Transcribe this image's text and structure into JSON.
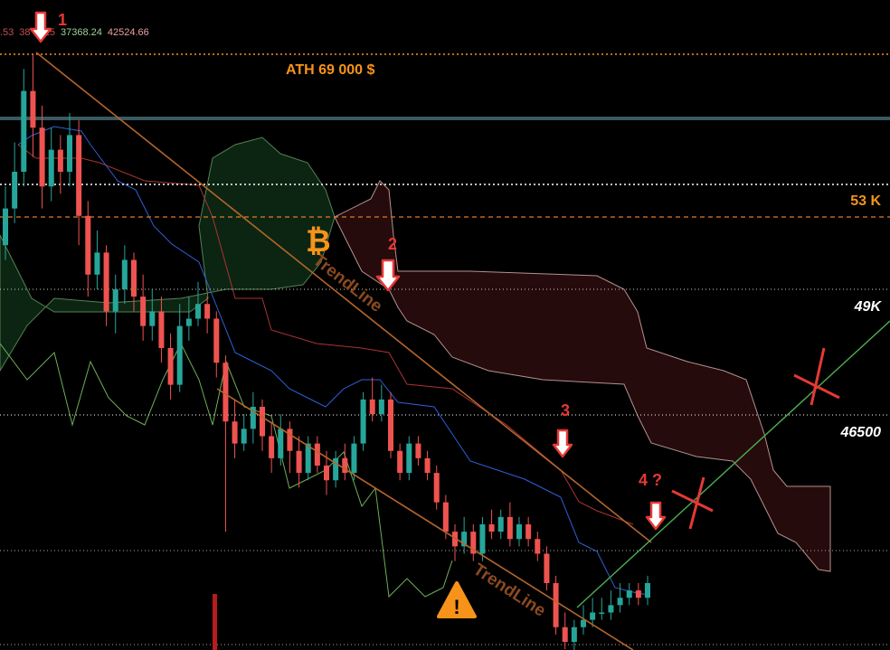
{
  "header": {
    "ohlc_values": [
      ".53",
      "38",
      "2.15",
      "37368.24",
      "42524.66"
    ]
  },
  "levels": {
    "ath_label": "ATH 69 000 $",
    "k53_label": "53 K",
    "k49_label": "49K",
    "p46500_label": "46500"
  },
  "annotations": {
    "marker_1": "1",
    "marker_2": "2",
    "marker_3": "3",
    "marker_4": "4 ?",
    "trendline_upper": "TrendLine",
    "trendline_lower": "TrendLine",
    "bitcoin_symbol": "₿",
    "warning_symbol": "!"
  },
  "colors": {
    "background": "#000000",
    "bull": "#26a69a",
    "bear": "#ef5350",
    "accent_orange": "#f7931a",
    "annotation_red": "#e53935",
    "level_text": "#ffffff",
    "trendline": "#b5652b",
    "support_green": "#4caf50",
    "kumo_red": "#3b1212",
    "kumo_green": "#0d2a14"
  },
  "chart_data": {
    "type": "candlestick",
    "title": "",
    "xlabel": "",
    "ylabel": "",
    "horizontal_levels": [
      {
        "name": "ATH",
        "value": 69000
      },
      {
        "name": "53K",
        "value": 53000
      },
      {
        "name": "49K",
        "value": 49000
      },
      {
        "name": "46500",
        "value": 46500
      }
    ],
    "price_range_approx": [
      33000,
      69000
    ],
    "candles": [
      {
        "o": 56.0,
        "c": 58.5,
        "h": 60.0,
        "l": 55.0
      },
      {
        "o": 58.5,
        "c": 61.0,
        "h": 63.0,
        "l": 57.5
      },
      {
        "o": 61.0,
        "c": 66.5,
        "h": 68.0,
        "l": 60.0
      },
      {
        "o": 66.5,
        "c": 64.0,
        "h": 69.0,
        "l": 62.0
      },
      {
        "o": 64.0,
        "c": 60.0,
        "h": 65.5,
        "l": 58.5
      },
      {
        "o": 60.0,
        "c": 62.5,
        "h": 64.0,
        "l": 59.0
      },
      {
        "o": 62.5,
        "c": 61.0,
        "h": 63.5,
        "l": 59.5
      },
      {
        "o": 61.0,
        "c": 63.5,
        "h": 65.0,
        "l": 60.0
      },
      {
        "o": 63.5,
        "c": 58.0,
        "h": 64.5,
        "l": 56.0
      },
      {
        "o": 58.0,
        "c": 54.0,
        "h": 59.0,
        "l": 52.5
      },
      {
        "o": 54.0,
        "c": 55.5,
        "h": 57.0,
        "l": 53.0
      },
      {
        "o": 55.5,
        "c": 51.5,
        "h": 56.0,
        "l": 50.5
      },
      {
        "o": 51.5,
        "c": 53.0,
        "h": 54.0,
        "l": 50.0
      },
      {
        "o": 53.0,
        "c": 55.0,
        "h": 56.0,
        "l": 52.0
      },
      {
        "o": 55.0,
        "c": 52.5,
        "h": 55.5,
        "l": 51.5
      },
      {
        "o": 52.5,
        "c": 50.5,
        "h": 54.0,
        "l": 49.5
      },
      {
        "o": 50.5,
        "c": 51.5,
        "h": 53.0,
        "l": 49.5
      },
      {
        "o": 51.5,
        "c": 49.0,
        "h": 52.5,
        "l": 48.0
      },
      {
        "o": 49.0,
        "c": 46.5,
        "h": 50.0,
        "l": 45.5
      },
      {
        "o": 46.5,
        "c": 50.5,
        "h": 52.0,
        "l": 46.0
      },
      {
        "o": 50.5,
        "c": 51.0,
        "h": 52.5,
        "l": 49.5
      },
      {
        "o": 51.0,
        "c": 52.0,
        "h": 53.5,
        "l": 50.5
      },
      {
        "o": 52.0,
        "c": 51.0,
        "h": 52.5,
        "l": 50.0
      },
      {
        "o": 51.0,
        "c": 48.0,
        "h": 51.5,
        "l": 47.0
      },
      {
        "o": 48.0,
        "c": 44.0,
        "h": 48.5,
        "l": 36.5
      },
      {
        "o": 44.0,
        "c": 42.5,
        "h": 45.5,
        "l": 41.5
      },
      {
        "o": 42.5,
        "c": 43.5,
        "h": 44.5,
        "l": 42.0
      },
      {
        "o": 43.5,
        "c": 45.0,
        "h": 46.0,
        "l": 42.5
      },
      {
        "o": 45.0,
        "c": 43.0,
        "h": 45.5,
        "l": 42.0
      },
      {
        "o": 43.0,
        "c": 41.5,
        "h": 44.0,
        "l": 40.5
      },
      {
        "o": 41.5,
        "c": 43.5,
        "h": 44.5,
        "l": 41.0
      },
      {
        "o": 43.5,
        "c": 42.0,
        "h": 44.0,
        "l": 40.5
      },
      {
        "o": 42.0,
        "c": 40.5,
        "h": 43.0,
        "l": 39.5
      },
      {
        "o": 40.5,
        "c": 42.5,
        "h": 43.0,
        "l": 40.0
      },
      {
        "o": 42.5,
        "c": 41.0,
        "h": 43.0,
        "l": 40.5
      },
      {
        "o": 41.0,
        "c": 40.0,
        "h": 42.0,
        "l": 39.0
      },
      {
        "o": 40.0,
        "c": 41.5,
        "h": 42.0,
        "l": 39.5
      },
      {
        "o": 41.5,
        "c": 40.5,
        "h": 42.5,
        "l": 40.0
      },
      {
        "o": 40.5,
        "c": 42.5,
        "h": 43.0,
        "l": 40.0
      },
      {
        "o": 42.5,
        "c": 45.5,
        "h": 46.0,
        "l": 42.0
      },
      {
        "o": 45.5,
        "c": 44.5,
        "h": 47.0,
        "l": 44.0
      },
      {
        "o": 44.5,
        "c": 45.5,
        "h": 46.5,
        "l": 44.0
      },
      {
        "o": 45.5,
        "c": 42.0,
        "h": 46.0,
        "l": 41.5
      },
      {
        "o": 42.0,
        "c": 40.5,
        "h": 42.5,
        "l": 40.0
      },
      {
        "o": 40.5,
        "c": 42.5,
        "h": 43.0,
        "l": 40.0
      },
      {
        "o": 42.5,
        "c": 41.5,
        "h": 43.0,
        "l": 41.0
      },
      {
        "o": 41.5,
        "c": 40.5,
        "h": 42.0,
        "l": 40.0
      },
      {
        "o": 40.5,
        "c": 38.5,
        "h": 41.0,
        "l": 38.0
      },
      {
        "o": 38.5,
        "c": 36.5,
        "h": 39.0,
        "l": 36.0
      },
      {
        "o": 36.5,
        "c": 35.5,
        "h": 37.0,
        "l": 34.5
      },
      {
        "o": 35.5,
        "c": 36.5,
        "h": 37.5,
        "l": 35.0
      },
      {
        "o": 36.5,
        "c": 35.0,
        "h": 37.0,
        "l": 34.5
      },
      {
        "o": 35.0,
        "c": 37.0,
        "h": 37.5,
        "l": 34.5
      },
      {
        "o": 37.0,
        "c": 36.5,
        "h": 38.0,
        "l": 36.0
      },
      {
        "o": 36.5,
        "c": 37.5,
        "h": 38.0,
        "l": 36.0
      },
      {
        "o": 37.5,
        "c": 36.0,
        "h": 38.5,
        "l": 35.5
      },
      {
        "o": 36.0,
        "c": 37.0,
        "h": 37.5,
        "l": 35.5
      },
      {
        "o": 37.0,
        "c": 36.0,
        "h": 37.5,
        "l": 35.5
      },
      {
        "o": 36.0,
        "c": 35.0,
        "h": 36.5,
        "l": 34.5
      },
      {
        "o": 35.0,
        "c": 33.0,
        "h": 35.5,
        "l": 32.5
      },
      {
        "o": 33.0,
        "c": 30.0,
        "h": 33.5,
        "l": 29.5
      },
      {
        "o": 30.0,
        "c": 29.0,
        "h": 31.0,
        "l": 28.5
      },
      {
        "o": 29.0,
        "c": 30.0,
        "h": 30.5,
        "l": 28.0
      },
      {
        "o": 30.0,
        "c": 30.5,
        "h": 31.5,
        "l": 29.5
      },
      {
        "o": 30.5,
        "c": 31.0,
        "h": 32.0,
        "l": 30.0
      },
      {
        "o": 31.0,
        "c": 31.0,
        "h": 32.0,
        "l": 30.5
      },
      {
        "o": 31.0,
        "c": 31.5,
        "h": 32.5,
        "l": 30.5
      },
      {
        "o": 31.5,
        "c": 32.0,
        "h": 33.0,
        "l": 31.0
      },
      {
        "o": 32.0,
        "c": 32.5,
        "h": 33.0,
        "l": 31.5
      },
      {
        "o": 32.5,
        "c": 32.0,
        "h": 33.0,
        "l": 31.5
      },
      {
        "o": 32.0,
        "c": 33.0,
        "h": 33.5,
        "l": 31.5
      }
    ]
  }
}
